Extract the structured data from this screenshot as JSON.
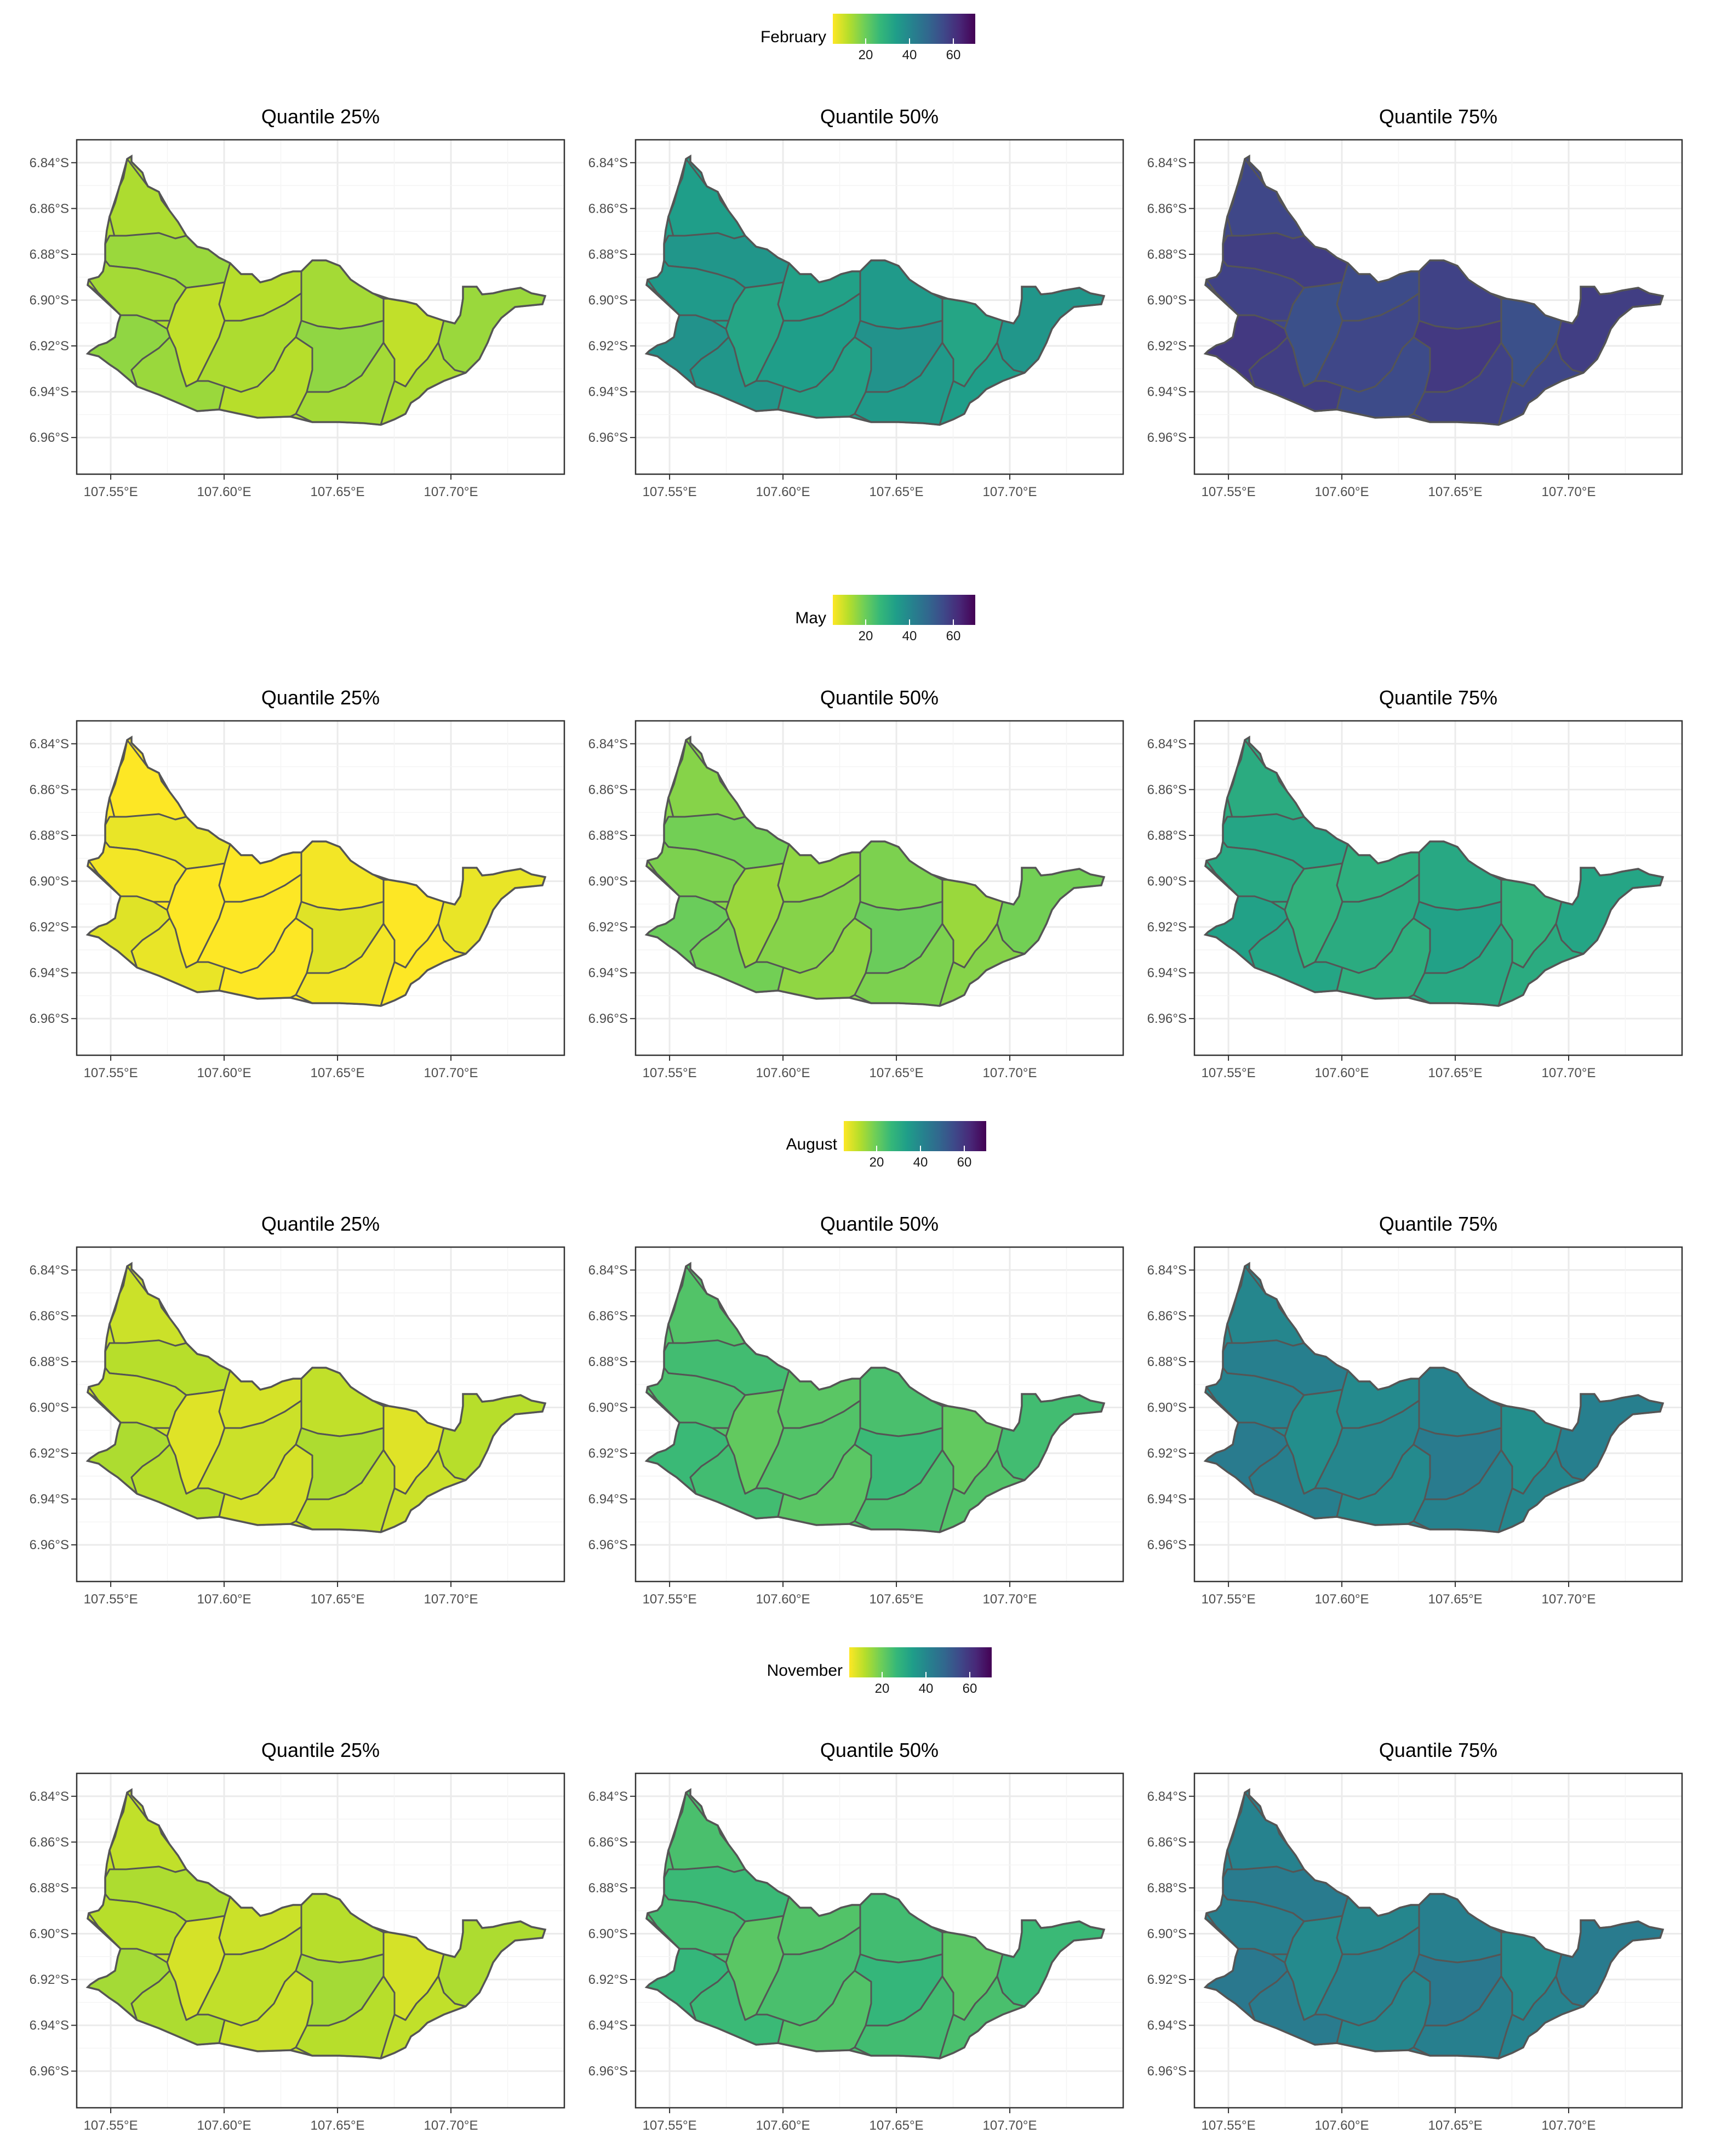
{
  "figure": {
    "panel_titles": [
      "Quantile 25%",
      "Quantile 50%",
      "Quantile 75%"
    ],
    "x_tick_labels": [
      "107.55°E",
      "107.60°E",
      "107.65°E",
      "107.70°E"
    ],
    "y_tick_labels": [
      "6.84°S",
      "6.86°S",
      "6.88°S",
      "6.90°S",
      "6.92°S",
      "6.94°S",
      "6.96°S"
    ],
    "legend_tick_labels": [
      "20",
      "40",
      "60"
    ],
    "legend_range": [
      5,
      70
    ],
    "palette": [
      "#fde725",
      "#b5de2b",
      "#6ece58",
      "#35b779",
      "#1f9e89",
      "#26828e",
      "#31688e",
      "#3e4989",
      "#482878",
      "#440154"
    ],
    "border_color": "#555555",
    "grid_color": "#ebebeb"
  },
  "chart_data": [
    {
      "type": "choropleth",
      "month": "February",
      "panels": [
        {
          "title": "Quantile 25%",
          "base_value": 13
        },
        {
          "title": "Quantile 50%",
          "base_value": 34
        },
        {
          "title": "Quantile 75%",
          "base_value": 56
        }
      ]
    },
    {
      "type": "choropleth",
      "month": "May",
      "panels": [
        {
          "title": "Quantile 25%",
          "base_value": 5
        },
        {
          "title": "Quantile 50%",
          "base_value": 17
        },
        {
          "title": "Quantile 75%",
          "base_value": 30
        }
      ]
    },
    {
      "type": "choropleth",
      "month": "August",
      "panels": [
        {
          "title": "Quantile 25%",
          "base_value": 10
        },
        {
          "title": "Quantile 50%",
          "base_value": 23
        },
        {
          "title": "Quantile 75%",
          "base_value": 40
        }
      ]
    },
    {
      "type": "choropleth",
      "month": "November",
      "panels": [
        {
          "title": "Quantile 25%",
          "base_value": 11
        },
        {
          "title": "Quantile 50%",
          "base_value": 24
        },
        {
          "title": "Quantile 75%",
          "base_value": 41
        }
      ]
    }
  ]
}
